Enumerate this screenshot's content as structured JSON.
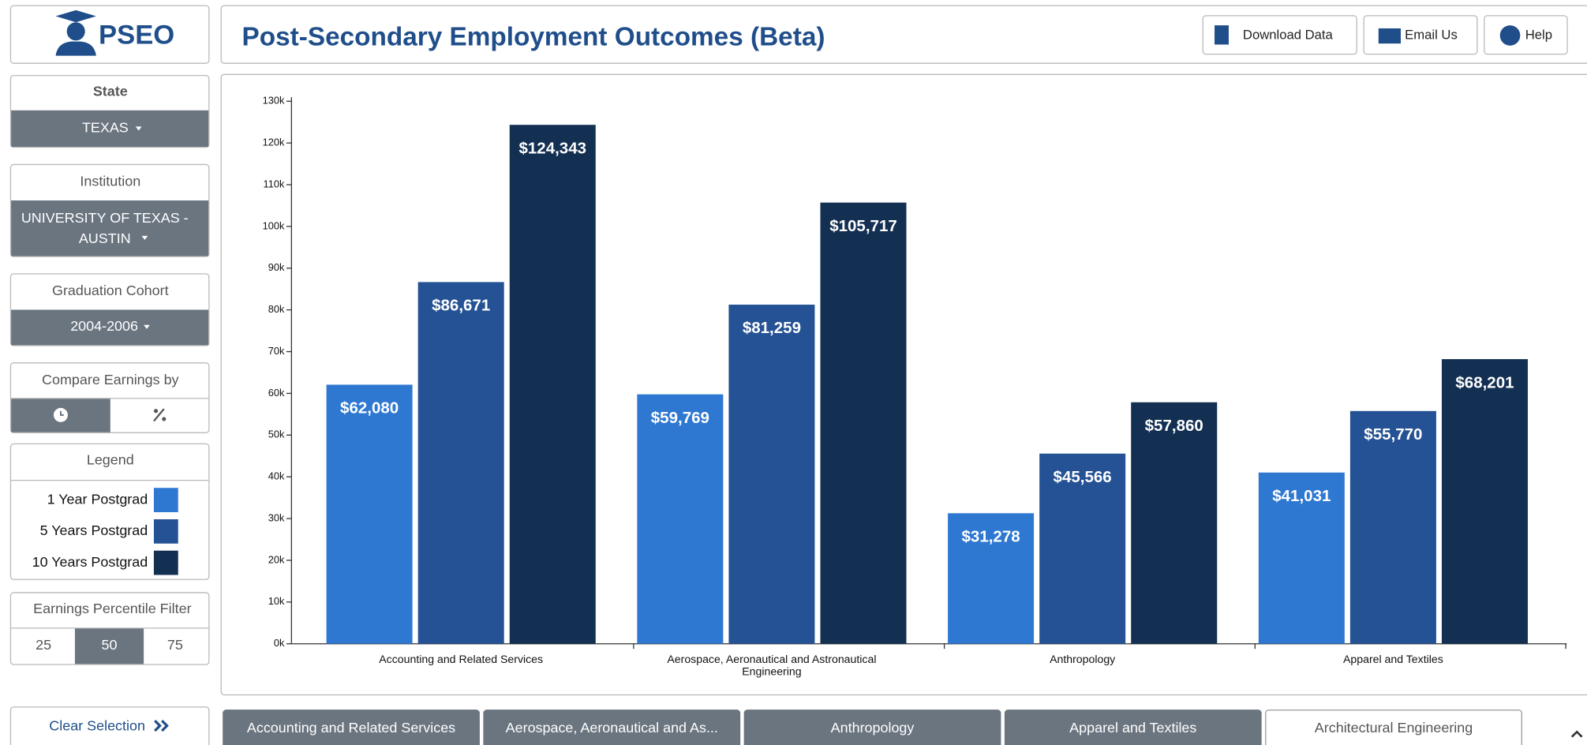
{
  "header": {
    "logo": "PSEO",
    "title": "Post-Secondary Employment Outcomes (Beta)",
    "buttons": [
      "Download Data",
      "Email Us",
      "Help"
    ]
  },
  "sidebar": {
    "state": {
      "label": "State",
      "value": "TEXAS"
    },
    "institution": {
      "label": "Institution",
      "value": "UNIVERSITY OF TEXAS - AUSTIN"
    },
    "cohort": {
      "label": "Graduation Cohort",
      "value": "2004-2006"
    },
    "compare": {
      "label": "Compare Earnings by"
    },
    "legend": {
      "label": "Legend"
    },
    "percentile": {
      "label": "Earnings Percentile Filter",
      "options": [
        25,
        50,
        75
      ],
      "selected": 50
    },
    "clear": "Clear Selection"
  },
  "tabs": [
    "Accounting and Related Services",
    "Aerospace, Aeronautical and As...",
    "Anthropology",
    "Apparel and Textiles",
    "Architectural Engineering"
  ],
  "chart_data": {
    "type": "bar",
    "categories": [
      "Accounting and Related Services",
      "Aerospace, Aeronautical and Astronautical Engineering",
      "Anthropology",
      "Apparel and Textiles"
    ],
    "series": [
      {
        "name": "1 Year Postgrad",
        "color": "#2f78d1",
        "values": [
          62080,
          59769,
          31278,
          41031
        ],
        "value_labels": [
          "$62,080",
          "$59,769",
          "$31,278",
          "$41,031"
        ]
      },
      {
        "name": "5 Years Postgrad",
        "color": "#245294",
        "values": [
          86671,
          81259,
          45566,
          55770
        ],
        "value_labels": [
          "$86,671",
          "$81,259",
          "$45,566",
          "$55,770"
        ]
      },
      {
        "name": "10 Years Postgrad",
        "color": "#132f52",
        "values": [
          124343,
          105717,
          57860,
          68201
        ],
        "value_labels": [
          "$124,343",
          "$105,717",
          "$57,860",
          "$68,201"
        ]
      }
    ],
    "ylim": [
      0,
      130000
    ],
    "yticks": [
      {
        "value": 0,
        "label": "0k"
      },
      {
        "value": 10000,
        "label": "10k"
      },
      {
        "value": 20000,
        "label": "20k"
      },
      {
        "value": 30000,
        "label": "30k"
      },
      {
        "value": 40000,
        "label": "40k"
      },
      {
        "value": 50000,
        "label": "50k"
      },
      {
        "value": 60000,
        "label": "60k"
      },
      {
        "value": 70000,
        "label": "70k"
      },
      {
        "value": 80000,
        "label": "80k"
      },
      {
        "value": 90000,
        "label": "90k"
      },
      {
        "value": 100000,
        "label": "100k"
      },
      {
        "value": 110000,
        "label": "110k"
      },
      {
        "value": 120000,
        "label": "120k"
      },
      {
        "value": 130000,
        "label": "130k"
      }
    ],
    "grid": false
  }
}
